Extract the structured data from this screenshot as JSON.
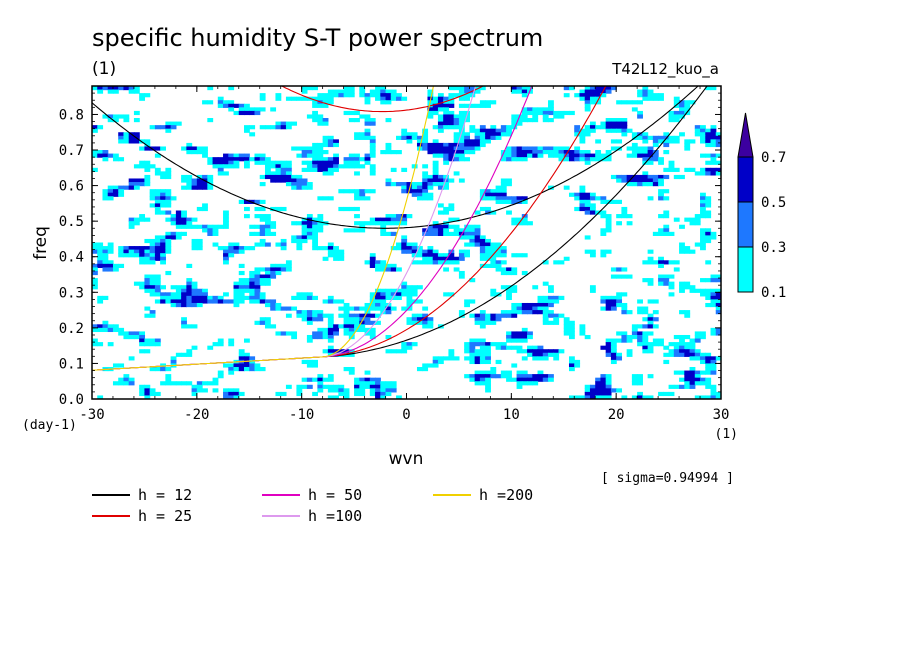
{
  "chart_data": {
    "type": "heatmap",
    "title": "specific humidity S-T power spectrum",
    "subtitle_left": "(1)",
    "subtitle_right": "T42L12_kuo_a",
    "xlabel": "wvn",
    "ylabel": "freq",
    "x_unit": "(1)",
    "y_unit": "(day-1)",
    "xlim": [
      -30,
      30
    ],
    "ylim": [
      0,
      0.88
    ],
    "x_ticks": [
      -30,
      -20,
      -10,
      0,
      10,
      20,
      30
    ],
    "x_tick_labels": [
      "-30",
      "-20",
      "-10",
      "0",
      "10",
      "20",
      "30"
    ],
    "y_ticks": [
      0.0,
      0.1,
      0.2,
      0.3,
      0.4,
      0.5,
      0.6,
      0.7,
      0.8
    ],
    "y_tick_labels": [
      "0.0",
      "0.1",
      "0.2",
      "0.3",
      "0.4",
      "0.5",
      "0.6",
      "0.7",
      "0.8"
    ],
    "colorbar": {
      "levels": [
        0.1,
        0.3,
        0.5,
        0.7
      ],
      "labels": [
        "0.1",
        "0.3",
        "0.5",
        "0.7"
      ],
      "colors": [
        "#00ffff",
        "#1e78ff",
        "#0000c8",
        "#3c00a0"
      ],
      "extend": "max"
    },
    "annotation": "[ sigma=0.94994 ]",
    "dispersion_curves": [
      {
        "label": "h = 12",
        "h": 12,
        "color": "#000000"
      },
      {
        "label": "h = 25",
        "h": 25,
        "color": "#e00000"
      },
      {
        "label": "h = 50",
        "h": 50,
        "color": "#e000c0"
      },
      {
        "label": "h =100",
        "h": 100,
        "color": "#dd99ee"
      },
      {
        "label": "h =200",
        "h": 200,
        "color": "#f0d000"
      }
    ],
    "grid": false
  }
}
